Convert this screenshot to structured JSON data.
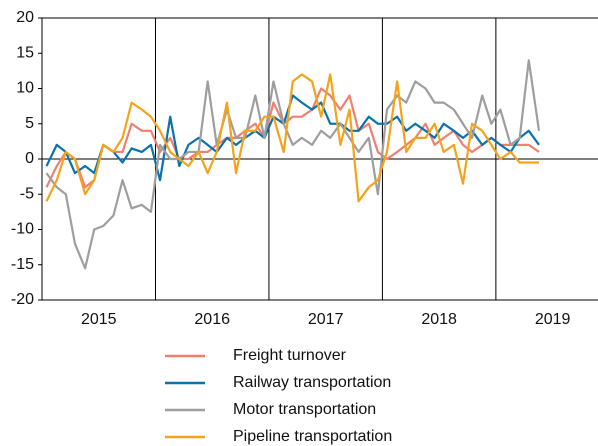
{
  "chart_data": {
    "type": "line",
    "x": [
      2015.04,
      2015.13,
      2015.21,
      2015.29,
      2015.38,
      2015.46,
      2015.54,
      2015.63,
      2015.71,
      2015.79,
      2015.88,
      2015.96,
      2016.04,
      2016.13,
      2016.21,
      2016.29,
      2016.38,
      2016.46,
      2016.54,
      2016.63,
      2016.71,
      2016.79,
      2016.88,
      2016.96,
      2017.04,
      2017.13,
      2017.21,
      2017.29,
      2017.38,
      2017.46,
      2017.54,
      2017.63,
      2017.71,
      2017.79,
      2017.88,
      2017.96,
      2018.04,
      2018.13,
      2018.21,
      2018.29,
      2018.38,
      2018.46,
      2018.54,
      2018.63,
      2018.71,
      2018.79,
      2018.88,
      2018.96,
      2019.04,
      2019.13,
      2019.21,
      2019.29,
      2019.38
    ],
    "xlim": [
      2015,
      2019.9
    ],
    "xticks": [
      {
        "value": 2015.5,
        "label": "2015"
      },
      {
        "value": 2016.5,
        "label": "2016"
      },
      {
        "value": 2017.5,
        "label": "2017"
      },
      {
        "value": 2018.5,
        "label": "2018"
      },
      {
        "value": 2019.5,
        "label": "2019"
      }
    ],
    "xgrid": [
      2016,
      2017,
      2018,
      2019
    ],
    "ylim": [
      -20,
      20
    ],
    "yticks": [
      -20,
      -15,
      -10,
      -5,
      0,
      5,
      10,
      15,
      20
    ],
    "series": [
      {
        "name": "Freight turnover",
        "color": "#f07f6f",
        "values": [
          -4,
          -1,
          1,
          0,
          -4,
          -3,
          2,
          1,
          1,
          5,
          4,
          4,
          1,
          3,
          0,
          0,
          1,
          1,
          2,
          3,
          3,
          4,
          5,
          3,
          8,
          5,
          6,
          6,
          7,
          10,
          9,
          7,
          9,
          4,
          5,
          1,
          0,
          1,
          2,
          3,
          5,
          2,
          3,
          4,
          2,
          1,
          2,
          3,
          2,
          2,
          2,
          2,
          1
        ]
      },
      {
        "name": "Railway transportation",
        "color": "#0a72ae",
        "values": [
          -1,
          2,
          1,
          -2,
          -1,
          -2,
          2,
          1,
          -0.5,
          1.5,
          1,
          2,
          -3,
          6,
          -1,
          2,
          3,
          2,
          1,
          3,
          2,
          3,
          4,
          3,
          6,
          5,
          9,
          8,
          7,
          8,
          5,
          5,
          4,
          4,
          6,
          5,
          5,
          6,
          4,
          5,
          4,
          3,
          5,
          4,
          3,
          4,
          2,
          3,
          2,
          1,
          3,
          4,
          2
        ]
      },
      {
        "name": "Motor transportation",
        "color": "#9e9e9e",
        "values": [
          -2,
          -4,
          -5,
          -12,
          -15.5,
          -10,
          -9.5,
          -8,
          -3,
          -7,
          -6.5,
          -7.5,
          2,
          0,
          0,
          1,
          1,
          11,
          2,
          7,
          3,
          3,
          9,
          3,
          11,
          5,
          2,
          3,
          2,
          4,
          3,
          5,
          3,
          1,
          3,
          -5,
          7,
          9,
          8,
          11,
          10,
          8,
          8,
          7,
          5,
          3,
          9,
          5,
          7,
          2,
          3,
          14,
          4
        ]
      },
      {
        "name": "Pipeline transportation",
        "color": "#f5a31a",
        "values": [
          -6,
          -3,
          1,
          0,
          -5,
          -3,
          2,
          1,
          3,
          8,
          7,
          6,
          4,
          1,
          0,
          -1,
          1,
          -2,
          1,
          8,
          -2,
          4,
          4,
          6,
          6,
          1,
          11,
          12,
          11,
          6,
          12,
          2,
          7,
          -6,
          -4,
          -3,
          1,
          11,
          1,
          3,
          3,
          5,
          1,
          2,
          -3.5,
          5,
          4,
          2,
          0,
          1,
          -0.5,
          -0.5,
          -0.5
        ]
      }
    ]
  }
}
